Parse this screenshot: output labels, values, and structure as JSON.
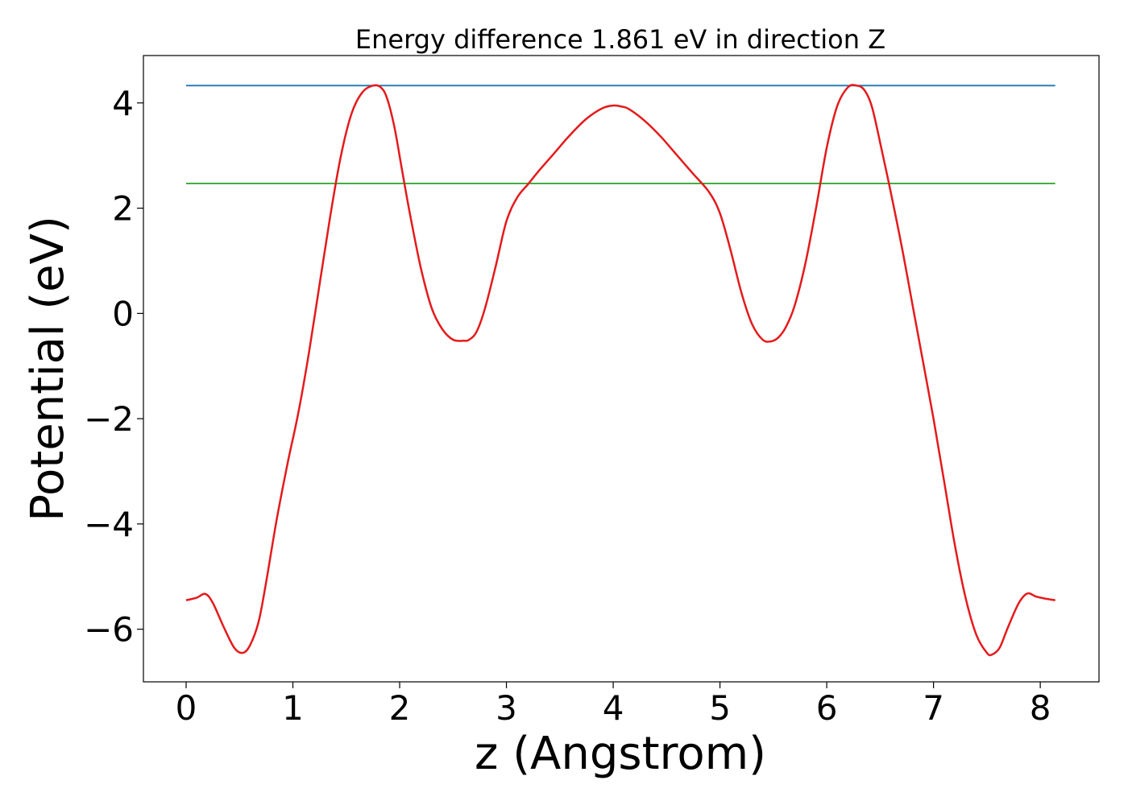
{
  "chart_data": {
    "type": "line",
    "title": "Energy difference 1.861 eV in direction Z",
    "xlabel": "z (Angstrom)",
    "ylabel": "Potential (eV)",
    "xlim": [
      -0.4,
      8.55
    ],
    "ylim": [
      -7.0,
      4.9
    ],
    "xticks": [
      0,
      1,
      2,
      3,
      4,
      5,
      6,
      7,
      8
    ],
    "xtick_labels": [
      "0",
      "1",
      "2",
      "3",
      "4",
      "5",
      "6",
      "7",
      "8"
    ],
    "yticks": [
      -6,
      -4,
      -2,
      0,
      2,
      4
    ],
    "ytick_labels": [
      "−6",
      "−4",
      "−2",
      "0",
      "2",
      "4"
    ],
    "grid": false,
    "legend": "none",
    "series": [
      {
        "color": "#e41a1c",
        "x": [
          0,
          0.1,
          0.18,
          0.25,
          0.35,
          0.45,
          0.53,
          0.6,
          0.68,
          0.75,
          0.85,
          0.95,
          1.05,
          1.15,
          1.25,
          1.35,
          1.45,
          1.55,
          1.65,
          1.75,
          1.82,
          1.88,
          1.95,
          2.02,
          2.1,
          2.2,
          2.3,
          2.4,
          2.5,
          2.6,
          2.65,
          2.72,
          2.8,
          2.9,
          3.0,
          3.1,
          3.2,
          3.3,
          3.45,
          3.6,
          3.75,
          3.9,
          4.0,
          4.08,
          4.15,
          4.3,
          4.45,
          4.6,
          4.75,
          4.9,
          5.0,
          5.1,
          5.2,
          5.3,
          5.4,
          5.48,
          5.55,
          5.62,
          5.7,
          5.8,
          5.9,
          6.0,
          6.1,
          6.2,
          6.28,
          6.35,
          6.42,
          6.5,
          6.6,
          6.7,
          6.8,
          6.9,
          7.0,
          7.1,
          7.2,
          7.3,
          7.4,
          7.5,
          7.55,
          7.62,
          7.7,
          7.8,
          7.88,
          7.96,
          8.05,
          8.14
        ],
        "y": [
          -5.45,
          -5.4,
          -5.33,
          -5.5,
          -5.95,
          -6.35,
          -6.45,
          -6.3,
          -5.85,
          -5.1,
          -3.9,
          -2.85,
          -1.9,
          -0.75,
          0.55,
          1.85,
          3.0,
          3.8,
          4.2,
          4.33,
          4.3,
          4.1,
          3.55,
          2.75,
          1.85,
          0.85,
          0.1,
          -0.3,
          -0.5,
          -0.52,
          -0.5,
          -0.35,
          0.1,
          0.9,
          1.75,
          2.2,
          2.45,
          2.7,
          3.05,
          3.4,
          3.7,
          3.9,
          3.95,
          3.93,
          3.88,
          3.65,
          3.35,
          3.0,
          2.65,
          2.3,
          1.9,
          1.2,
          0.4,
          -0.2,
          -0.5,
          -0.53,
          -0.45,
          -0.25,
          0.15,
          0.95,
          2.0,
          3.15,
          3.95,
          4.3,
          4.33,
          4.25,
          3.95,
          3.25,
          2.3,
          1.3,
          0.2,
          -0.9,
          -2.0,
          -3.2,
          -4.4,
          -5.4,
          -6.1,
          -6.45,
          -6.48,
          -6.35,
          -5.95,
          -5.5,
          -5.32,
          -5.38,
          -5.42,
          -5.45
        ]
      },
      {
        "color": "#1f77b4",
        "x": [
          0,
          8.14
        ],
        "y": [
          4.33,
          4.33
        ]
      },
      {
        "color": "#2ca02c",
        "x": [
          0,
          8.14
        ],
        "y": [
          2.47,
          2.47
        ]
      }
    ]
  }
}
